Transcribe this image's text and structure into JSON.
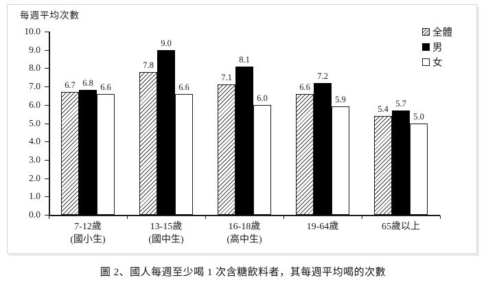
{
  "chart_data": {
    "type": "bar",
    "axis_title": "每週平均次數",
    "ylim": [
      0,
      10
    ],
    "ytick_step": 1,
    "ytick_labels": [
      "0.0",
      "1.0",
      "2.0",
      "3.0",
      "4.0",
      "5.0",
      "6.0",
      "7.0",
      "8.0",
      "9.0",
      "10.0"
    ],
    "categories": [
      {
        "line1": "7-12歲",
        "line2": "(國小生)"
      },
      {
        "line1": "13-15歲",
        "line2": "(國中生)"
      },
      {
        "line1": "16-18歲",
        "line2": "(高中生)"
      },
      {
        "line1": "19-64歲",
        "line2": ""
      },
      {
        "line1": "65歲以上",
        "line2": ""
      }
    ],
    "series": [
      {
        "name": "全體",
        "style": "hatched",
        "values": [
          6.7,
          7.8,
          7.1,
          6.6,
          5.4
        ]
      },
      {
        "name": "男",
        "style": "solid",
        "values": [
          6.8,
          9.0,
          8.1,
          7.2,
          5.7
        ]
      },
      {
        "name": "女",
        "style": "outline",
        "values": [
          6.6,
          6.6,
          6.0,
          5.9,
          5.0
        ]
      }
    ],
    "legend_position": "top-right",
    "grid": "off",
    "bar_colors": {
      "solid": "#000000",
      "outline_border": "#1a1a1a",
      "hatch_line": "#3c3c3c"
    }
  },
  "caption": "圖 2、國人每週至少喝 1 次含糖飲料者，其每週平均喝的次數"
}
